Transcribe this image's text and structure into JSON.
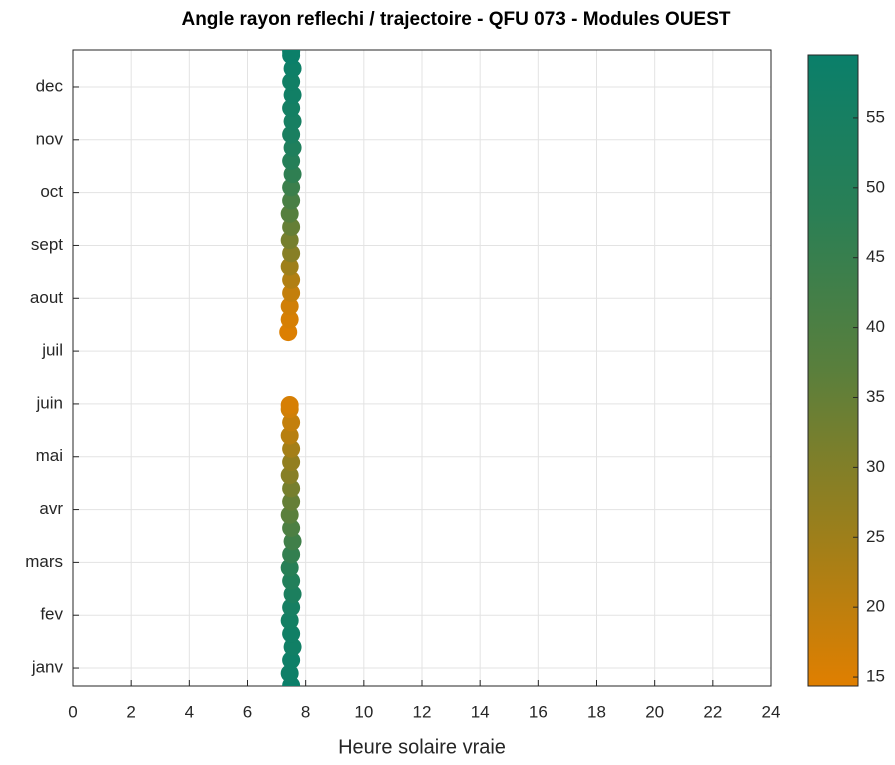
{
  "chart_data": {
    "type": "scatter",
    "title": "Angle rayon reflechi / trajectoire - QFU 073 - Modules OUEST",
    "x_label": "Heure solaire vraie",
    "x": [
      7.5,
      7.45,
      7.5,
      7.55,
      7.5,
      7.45,
      7.5,
      7.55,
      7.5,
      7.45,
      7.5,
      7.55,
      7.5,
      7.45,
      7.5,
      7.5,
      7.45,
      7.5,
      7.5,
      7.45,
      7.5,
      7.45,
      7.45,
      7.4,
      7.45,
      7.45,
      7.5,
      7.5,
      7.45,
      7.5,
      7.45,
      7.5,
      7.45,
      7.5,
      7.5,
      7.55,
      7.5,
      7.55,
      7.5,
      7.55,
      7.5,
      7.55,
      7.5,
      7.55,
      7.5,
      7.5
    ],
    "y": [
      0.67,
      0.9,
      1.15,
      1.4,
      1.65,
      1.9,
      2.15,
      2.4,
      2.65,
      2.9,
      3.15,
      3.4,
      3.65,
      3.9,
      4.15,
      4.4,
      4.65,
      4.9,
      5.15,
      5.4,
      5.65,
      5.9,
      5.98,
      7.36,
      7.6,
      7.85,
      8.1,
      8.35,
      8.6,
      8.85,
      9.1,
      9.35,
      9.6,
      9.85,
      10.1,
      10.35,
      10.6,
      10.85,
      11.1,
      11.35,
      11.6,
      11.85,
      12.1,
      12.35,
      12.6,
      12.67
    ],
    "color_values": [
      59,
      58,
      58,
      57,
      57,
      56,
      55,
      53,
      51,
      49,
      46,
      43,
      40,
      37,
      35,
      32,
      29,
      27,
      24,
      21,
      19,
      17,
      16,
      15,
      16,
      17,
      19,
      22,
      25,
      29,
      32,
      35,
      38,
      41,
      44,
      47,
      50,
      52,
      54,
      55,
      56,
      57,
      57,
      58,
      59,
      59
    ],
    "colormap": [
      "#e07f00",
      "#9a7f1c",
      "#5a7f3c",
      "#2a7f55",
      "#0a7f6a"
    ],
    "xlim": [
      0,
      24
    ],
    "xticks": [
      0,
      2,
      4,
      6,
      8,
      10,
      12,
      14,
      16,
      18,
      20,
      22,
      24
    ],
    "ylim": [
      0.66,
      12.7
    ],
    "yticks": [
      {
        "value": 1,
        "label": "janv"
      },
      {
        "value": 2,
        "label": "fev"
      },
      {
        "value": 3,
        "label": "mars"
      },
      {
        "value": 4,
        "label": "avr"
      },
      {
        "value": 5,
        "label": "mai"
      },
      {
        "value": 6,
        "label": "juin"
      },
      {
        "value": 7,
        "label": "juil"
      },
      {
        "value": 8,
        "label": "aout"
      },
      {
        "value": 9,
        "label": "sept"
      },
      {
        "value": 10,
        "label": "oct"
      },
      {
        "value": 11,
        "label": "nov"
      },
      {
        "value": 12,
        "label": "dec"
      }
    ],
    "clim": [
      14.36,
      59.5
    ],
    "cticks": [
      15,
      20,
      25,
      30,
      35,
      40,
      45,
      50,
      55
    ],
    "grid": true
  }
}
